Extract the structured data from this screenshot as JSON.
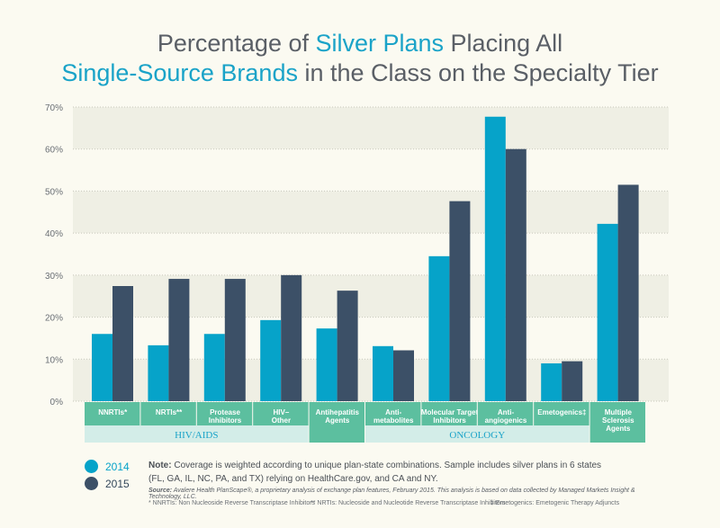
{
  "chart_data": {
    "type": "bar",
    "title_parts": [
      "Percentage of ",
      "Silver Plans",
      " Placing All"
    ],
    "title_line2_parts": [
      "Single-Source Brands",
      " in the Class on the Specialty Tier"
    ],
    "categories": [
      "NNRTIs*",
      "NRTIs**",
      "Protease Inhibitors",
      "HIV–Other",
      "Antihepatitis Agents",
      "Anti-metabolites",
      "Molecular Target Inhibitors",
      "Anti-angiogenics",
      "Emetogenics‡",
      "Multiple Sclerosis Agents"
    ],
    "groups": [
      {
        "label": "HIV/AIDS",
        "span": [
          0,
          3
        ]
      },
      {
        "label": "ONCOLOGY",
        "span": [
          5,
          8
        ]
      }
    ],
    "series": [
      {
        "name": "2014",
        "color": "#06a3c9",
        "values": [
          16,
          13.3,
          16,
          19.3,
          17.3,
          13.1,
          34.5,
          67.7,
          9,
          42.2
        ]
      },
      {
        "name": "2015",
        "color": "#3c5067",
        "values": [
          27.4,
          29.1,
          29.1,
          30,
          26.3,
          12.1,
          47.6,
          60,
          9.5,
          51.5
        ]
      }
    ],
    "yticks": [
      "0%",
      "10%",
      "20%",
      "30%",
      "40%",
      "50%",
      "60%",
      "70%"
    ],
    "ylim": [
      0,
      70
    ],
    "grid": true,
    "legend": "bottom-left"
  },
  "note_label": "Note:",
  "note_text": " Coverage is weighted according to unique plan-state combinations. Sample includes silver plans in 6 states (FL, GA, IL, NC, PA, and TX) relying on HealthCare.gov, and CA and NY.",
  "source_label": "Source:",
  "source_text": " Avalere Health PlanScape®, a proprietary analysis of exchange plan features, February 2015. This analysis is based on data collected by Managed Markets Insight & Technology, LLC.",
  "footnotes": [
    "* NNRTIs: Non Nucleoside Reverse Transcriptase Inhibitors",
    "** NRTIs: Nucleoside and Nucleotide Reverse Transcriptase Inhibitors",
    "‡ Emetogenics: Emetogenic Therapy Adjuncts"
  ]
}
